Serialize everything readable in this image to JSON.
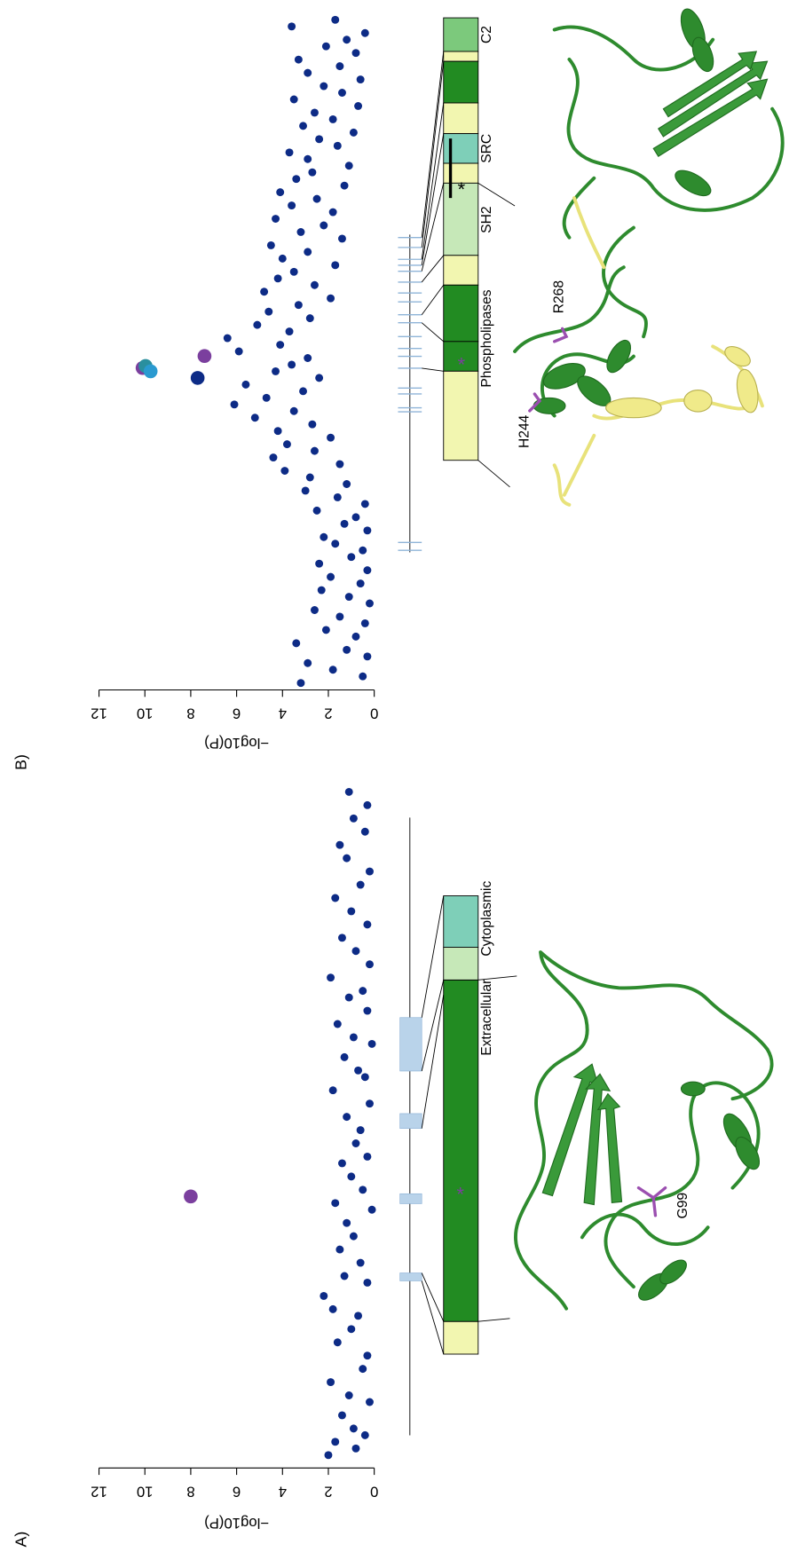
{
  "chart_data": [
    {
      "type": "scatter",
      "label": "A)",
      "ylabel": "−log10(P)",
      "ylim": [
        0,
        12
      ],
      "yticks": [
        0,
        2,
        4,
        6,
        8,
        10,
        12
      ],
      "xlim": [
        0,
        100
      ],
      "series": [
        {
          "color": "#0d2b86",
          "x": [
            0,
            1,
            2,
            3,
            4,
            6,
            8,
            9,
            11,
            13,
            15,
            17,
            19,
            21,
            22,
            24,
            26,
            27,
            29,
            31,
            33,
            35,
            37,
            38,
            40,
            42,
            44,
            45,
            47,
            49,
            51,
            53,
            55,
            57,
            58,
            60,
            62,
            63,
            65,
            67,
            69,
            70,
            72,
            74,
            76,
            78,
            80,
            82,
            84,
            86,
            88,
            90,
            92,
            94,
            96,
            98,
            100
          ],
          "values": [
            2,
            0.8,
            1.7,
            0.4,
            0.9,
            1.4,
            0.2,
            1.1,
            1.9,
            0.5,
            0.3,
            1.6,
            1,
            0.7,
            1.8,
            2.2,
            0.3,
            1.3,
            0.6,
            1.5,
            0.9,
            1.2,
            0.1,
            1.7,
            0.5,
            1,
            1.4,
            0.3,
            0.8,
            0.6,
            1.2,
            0.2,
            1.8,
            0.4,
            0.7,
            1.3,
            0.1,
            0.9,
            1.6,
            0.3,
            1.1,
            0.5,
            1.9,
            0.2,
            0.8,
            1.4,
            0.3,
            1,
            1.7,
            0.6,
            0.2,
            1.2,
            1.5,
            0.4,
            0.9,
            0.3,
            1.1
          ]
        },
        {
          "color": "#7b3f9e",
          "x": [
            39
          ],
          "values": [
            8
          ]
        }
      ],
      "domains": [
        "Extracellular",
        "Cytoplasmic"
      ],
      "residues": [
        "G99"
      ]
    },
    {
      "type": "scatter",
      "label": "B)",
      "ylabel": "−log10(P)",
      "ylim": [
        0,
        12
      ],
      "yticks": [
        0,
        2,
        4,
        6,
        8,
        10,
        12
      ],
      "xlim": [
        0,
        100
      ],
      "series": [
        {
          "color": "#0d2b86",
          "x": [
            0,
            1,
            2,
            3,
            4,
            5,
            6,
            7,
            8,
            9,
            10,
            11,
            12,
            13,
            14,
            15,
            16,
            17,
            18,
            19,
            20,
            21,
            22,
            23,
            24,
            25,
            26,
            27,
            28,
            29,
            30,
            31,
            32,
            33,
            34,
            35,
            36,
            37,
            38,
            39,
            40,
            41,
            42,
            43,
            44,
            45,
            46,
            47,
            48,
            49,
            50,
            51,
            52,
            53,
            54,
            55,
            56,
            57,
            58,
            59,
            60,
            61,
            62,
            63,
            64,
            65,
            66,
            67,
            68,
            69,
            70,
            71,
            72,
            73,
            74,
            75,
            76,
            77,
            78,
            79,
            80,
            81,
            82,
            83,
            84,
            85,
            86,
            87,
            88,
            89,
            90,
            91,
            92,
            93,
            94,
            95,
            96,
            97,
            98,
            99,
            100
          ],
          "values": [
            3.2,
            0.5,
            1.8,
            2.9,
            0.3,
            1.2,
            3.4,
            0.8,
            2.1,
            0.4,
            1.5,
            2.6,
            0.2,
            1.1,
            2.3,
            0.6,
            1.9,
            0.3,
            2.4,
            1,
            0.5,
            1.7,
            2.2,
            0.3,
            1.3,
            0.8,
            2.5,
            0.4,
            1.6,
            3,
            1.2,
            2.8,
            3.9,
            1.5,
            4.4,
            2.6,
            3.8,
            1.9,
            4.2,
            2.7,
            5.2,
            3.5,
            6.1,
            4.7,
            3.1,
            5.6,
            2.4,
            4.3,
            3.6,
            2.9,
            5.9,
            4.1,
            6.4,
            3.7,
            5.1,
            2.8,
            4.6,
            3.3,
            1.9,
            4.8,
            2.6,
            4.2,
            3.5,
            1.7,
            4,
            2.9,
            4.5,
            1.4,
            3.2,
            2.2,
            4.3,
            1.8,
            3.6,
            2.5,
            4.1,
            1.3,
            3.4,
            2.7,
            1.1,
            2.9,
            3.7,
            1.6,
            2.4,
            0.9,
            3.1,
            1.8,
            2.6,
            0.7,
            3.5,
            1.4,
            2.2,
            0.6,
            2.9,
            1.5,
            3.3,
            0.8,
            2.1,
            1.2,
            0.4,
            3.6,
            1.7
          ]
        },
        {
          "color": "#0d2b86",
          "x": [
            46
          ],
          "values": [
            7.7
          ]
        },
        {
          "color": "#7b3f9e",
          "x": [
            47.5,
            49.3
          ],
          "values": [
            10.1,
            7.4
          ]
        },
        {
          "color": "#2a8f9e",
          "x": [
            47.8
          ],
          "values": [
            9.97
          ]
        },
        {
          "color": "#2a9ad0",
          "x": [
            47
          ],
          "values": [
            9.75
          ]
        }
      ],
      "domains": [
        "Phospholipases",
        "SH2",
        "SRC",
        "C2"
      ],
      "residues": [
        "H244",
        "R268"
      ]
    }
  ]
}
